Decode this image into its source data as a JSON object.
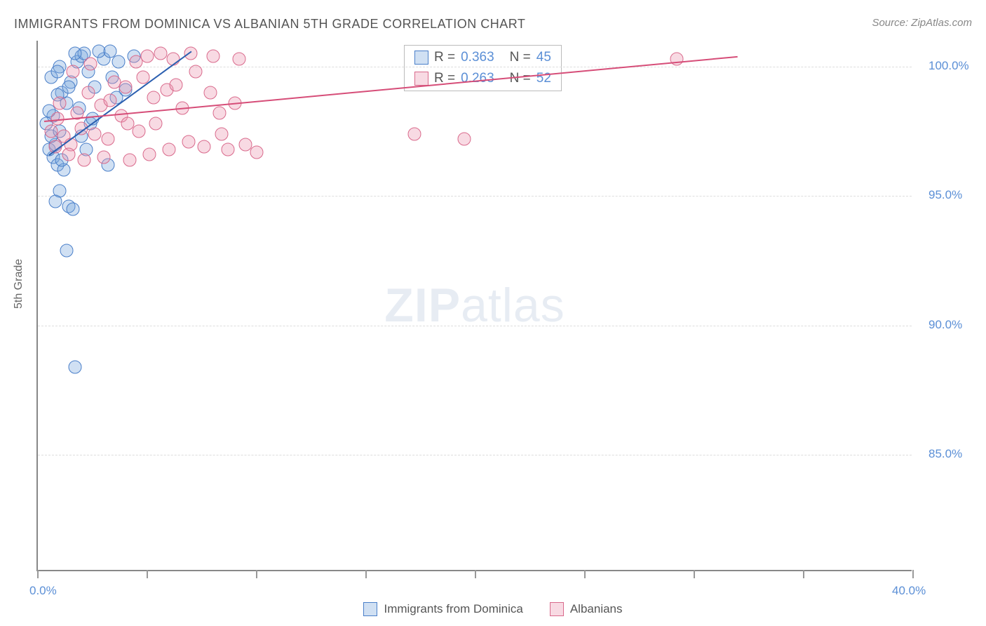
{
  "title": "IMMIGRANTS FROM DOMINICA VS ALBANIAN 5TH GRADE CORRELATION CHART",
  "source_label": "Source: ZipAtlas.com",
  "ylabel": "5th Grade",
  "watermark_bold": "ZIP",
  "watermark_light": "atlas",
  "chart": {
    "type": "scatter",
    "background_color": "#ffffff",
    "grid_color": "#dddddd",
    "axis_color": "#888888",
    "label_color": "#5b8fd6",
    "label_fontsize": 17,
    "title_fontsize": 18,
    "xlim": [
      0,
      40
    ],
    "ylim": [
      80.5,
      101
    ],
    "ytick_values": [
      85,
      90,
      95,
      100
    ],
    "ytick_labels": [
      "85.0%",
      "90.0%",
      "95.0%",
      "100.0%"
    ],
    "xtick_values": [
      0,
      5,
      10,
      15,
      20,
      25,
      30,
      35,
      40
    ],
    "xtick_labels_shown": {
      "0": "0.0%",
      "40": "40.0%"
    },
    "marker_radius": 9.5,
    "marker_fill_opacity": 0.35,
    "marker_stroke_width": 1.4
  },
  "series": [
    {
      "name": "Immigrants from Dominica",
      "color_stroke": "#4a7fc9",
      "color_fill": "rgba(120,165,220,0.35)",
      "R": "0.363",
      "N": "45",
      "trend": {
        "x1": 0.5,
        "y1": 96.6,
        "x2": 7.0,
        "y2": 100.6,
        "color": "#2b5fb0",
        "width": 2.2
      },
      "points": [
        [
          0.7,
          96.5
        ],
        [
          0.5,
          96.8
        ],
        [
          0.8,
          97.0
        ],
        [
          0.6,
          97.3
        ],
        [
          0.9,
          96.2
        ],
        [
          1.0,
          97.5
        ],
        [
          0.7,
          98.1
        ],
        [
          1.3,
          98.6
        ],
        [
          1.1,
          99.0
        ],
        [
          0.5,
          98.3
        ],
        [
          1.5,
          99.4
        ],
        [
          1.8,
          100.2
        ],
        [
          2.0,
          100.4
        ],
        [
          2.3,
          99.8
        ],
        [
          2.1,
          100.5
        ],
        [
          2.6,
          99.2
        ],
        [
          3.0,
          100.3
        ],
        [
          2.8,
          100.6
        ],
        [
          3.4,
          99.6
        ],
        [
          3.7,
          100.2
        ],
        [
          1.2,
          96.0
        ],
        [
          1.0,
          95.2
        ],
        [
          0.8,
          94.8
        ],
        [
          1.4,
          94.6
        ],
        [
          1.6,
          94.5
        ],
        [
          1.3,
          92.9
        ],
        [
          1.7,
          88.4
        ],
        [
          0.9,
          98.9
        ],
        [
          4.0,
          99.1
        ],
        [
          4.4,
          100.4
        ],
        [
          3.2,
          96.2
        ],
        [
          2.4,
          97.8
        ],
        [
          0.6,
          99.6
        ],
        [
          1.0,
          100.0
        ],
        [
          1.7,
          100.5
        ],
        [
          1.9,
          98.4
        ],
        [
          2.5,
          98.0
        ],
        [
          2.2,
          96.8
        ],
        [
          0.4,
          97.8
        ],
        [
          0.9,
          99.8
        ],
        [
          3.3,
          100.6
        ],
        [
          3.6,
          98.8
        ],
        [
          1.4,
          99.2
        ],
        [
          2.0,
          97.3
        ],
        [
          1.1,
          96.4
        ]
      ]
    },
    {
      "name": "Albanians",
      "color_stroke": "#d96a8c",
      "color_fill": "rgba(235,150,175,0.35)",
      "R": "0.263",
      "N": "52",
      "trend": {
        "x1": 0.3,
        "y1": 97.9,
        "x2": 32.0,
        "y2": 100.4,
        "color": "#d64d78",
        "width": 2.2
      },
      "points": [
        [
          0.6,
          97.5
        ],
        [
          0.9,
          98.0
        ],
        [
          1.2,
          97.3
        ],
        [
          1.0,
          98.6
        ],
        [
          1.5,
          97.0
        ],
        [
          1.8,
          98.2
        ],
        [
          2.0,
          97.6
        ],
        [
          2.3,
          99.0
        ],
        [
          2.6,
          97.4
        ],
        [
          2.9,
          98.5
        ],
        [
          3.2,
          97.2
        ],
        [
          3.5,
          99.4
        ],
        [
          3.8,
          98.1
        ],
        [
          4.1,
          97.8
        ],
        [
          4.5,
          100.2
        ],
        [
          4.8,
          99.6
        ],
        [
          5.0,
          100.4
        ],
        [
          5.3,
          98.8
        ],
        [
          5.6,
          100.5
        ],
        [
          5.9,
          99.1
        ],
        [
          6.2,
          100.3
        ],
        [
          6.6,
          98.4
        ],
        [
          6.9,
          97.1
        ],
        [
          7.2,
          99.8
        ],
        [
          7.6,
          96.9
        ],
        [
          8.0,
          100.4
        ],
        [
          8.4,
          97.4
        ],
        [
          8.7,
          96.8
        ],
        [
          9.2,
          100.3
        ],
        [
          9.5,
          97.0
        ],
        [
          5.1,
          96.6
        ],
        [
          6.0,
          96.8
        ],
        [
          10.0,
          96.7
        ],
        [
          4.2,
          96.4
        ],
        [
          3.0,
          96.5
        ],
        [
          17.2,
          97.4
        ],
        [
          19.5,
          97.2
        ],
        [
          29.2,
          100.3
        ],
        [
          1.4,
          96.6
        ],
        [
          2.1,
          96.4
        ],
        [
          0.8,
          96.9
        ],
        [
          1.6,
          99.8
        ],
        [
          2.4,
          100.1
        ],
        [
          3.3,
          98.7
        ],
        [
          4.0,
          99.2
        ],
        [
          4.6,
          97.5
        ],
        [
          5.4,
          97.8
        ],
        [
          6.3,
          99.3
        ],
        [
          7.0,
          100.5
        ],
        [
          7.9,
          99.0
        ],
        [
          8.3,
          98.2
        ],
        [
          9.0,
          98.6
        ]
      ]
    }
  ],
  "legend_box": {
    "R_label": "R =",
    "N_label": "N ="
  },
  "bottom_legend": {
    "items": [
      "Immigrants from Dominica",
      "Albanians"
    ]
  }
}
